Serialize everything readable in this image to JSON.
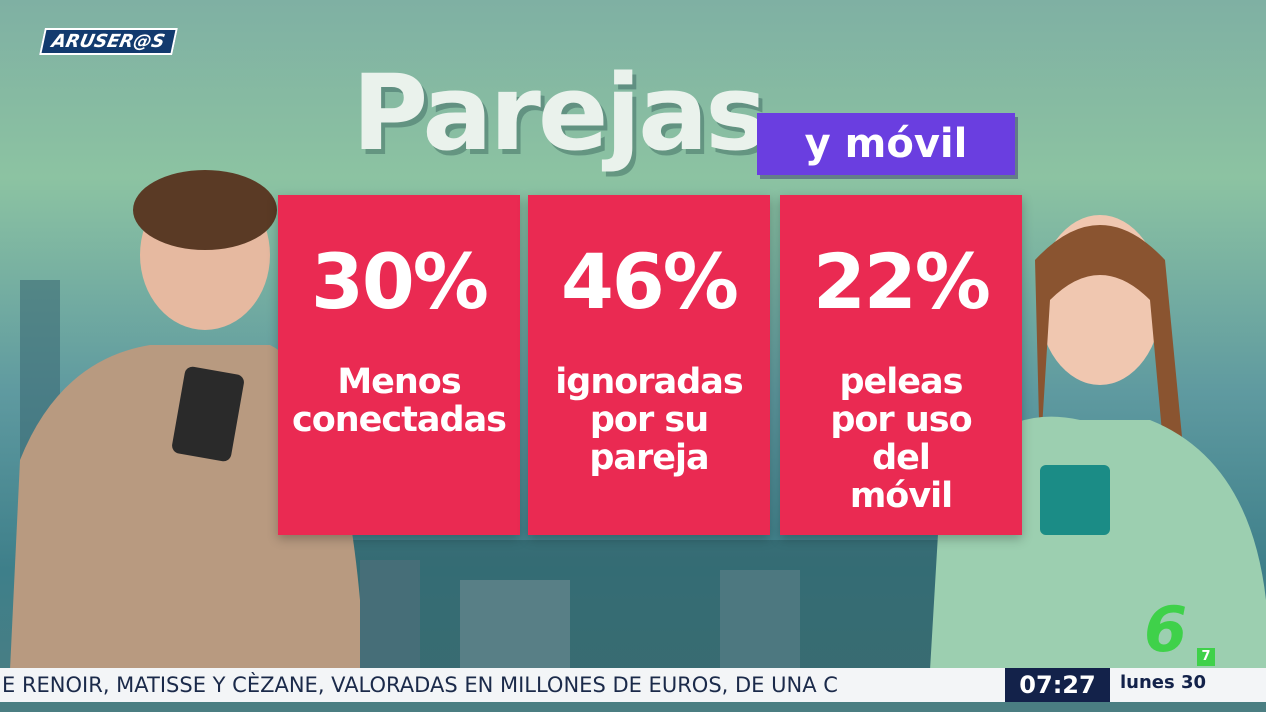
{
  "logo": "ARUSER@S",
  "title": "Parejas",
  "subtitle": "y móvil",
  "cards": [
    {
      "value": "30%",
      "lines": [
        "Menos",
        "conectadas"
      ]
    },
    {
      "value": "46%",
      "lines": [
        "ignoradas",
        "por su",
        "pareja"
      ]
    },
    {
      "value": "22%",
      "lines": [
        "peleas",
        "por uso",
        "del",
        "móvil"
      ]
    }
  ],
  "ticker": {
    "text": "E RENOIR, MATISSE Y CÈZANE, VALORADAS EN MILLONES DE EUROS, DE UNA C",
    "time": "07:27",
    "date": "lunes 30"
  },
  "channel": {
    "number": "6",
    "sub": "7"
  }
}
